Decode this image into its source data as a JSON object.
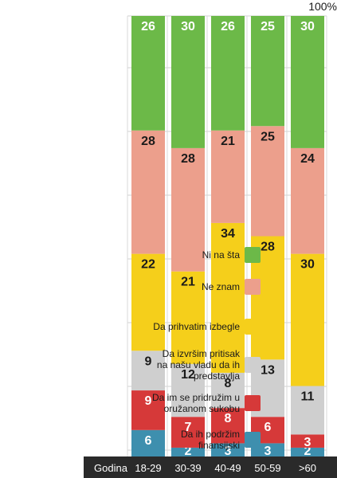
{
  "chart_data": {
    "type": "bar",
    "stacked": true,
    "orientation": "vertical",
    "title": "",
    "top_label": "100%",
    "xlabel": "Godina",
    "ylabel": "",
    "ylim": [
      0,
      100
    ],
    "categories": [
      "18-29",
      "30-39",
      "40-49",
      "50-59",
      ">60"
    ],
    "series": [
      {
        "name": "Da ih podržim finansijski",
        "color": "#3e8fae",
        "label_color": "#ffffff",
        "values": [
          6,
          2,
          3,
          3,
          2
        ]
      },
      {
        "name": "Da im se pridružim u oružanom sukobu",
        "color": "#d63939",
        "label_color": "#ffffff",
        "values": [
          9,
          7,
          8,
          6,
          3
        ]
      },
      {
        "name": "Da izvršim pritisak na našu vladu da ih predstavlja",
        "color": "#cfcfcf",
        "label_color": "#1a1a1a",
        "values": [
          9,
          12,
          8,
          13,
          11
        ]
      },
      {
        "name": "Da prihvatim izbegle",
        "color": "#f5cf1b",
        "label_color": "#1a1a1a",
        "values": [
          22,
          21,
          34,
          28,
          30
        ]
      },
      {
        "name": "Ne znam",
        "color": "#ec9f8c",
        "label_color": "#1a1a1a",
        "values": [
          28,
          28,
          21,
          25,
          24
        ]
      },
      {
        "name": "Ni na šta",
        "color": "#6cb948",
        "label_color": "#ffffff",
        "values": [
          26,
          30,
          26,
          25,
          30
        ]
      }
    ],
    "legend": [
      {
        "label": "Ni na šta",
        "color": "#6cb948"
      },
      {
        "label": "Ne znam",
        "color": "#ec9f8c"
      },
      {
        "label": "Da prihvatim izbegle",
        "color": "#f5cf1b"
      },
      {
        "label": "Da izvršim pritisak\nna našu vladu da ih\npredstavlja",
        "color": "#cfcfcf"
      },
      {
        "label": "Da im se pridružim u\noružanom sukobu",
        "color": "#d63939"
      },
      {
        "label": "Da ih podržim\nfinansijski",
        "color": "#3e8fae"
      }
    ],
    "axis_bar_color": "#2a2a2a",
    "axis_text_color": "#ffffff",
    "grid": true
  }
}
